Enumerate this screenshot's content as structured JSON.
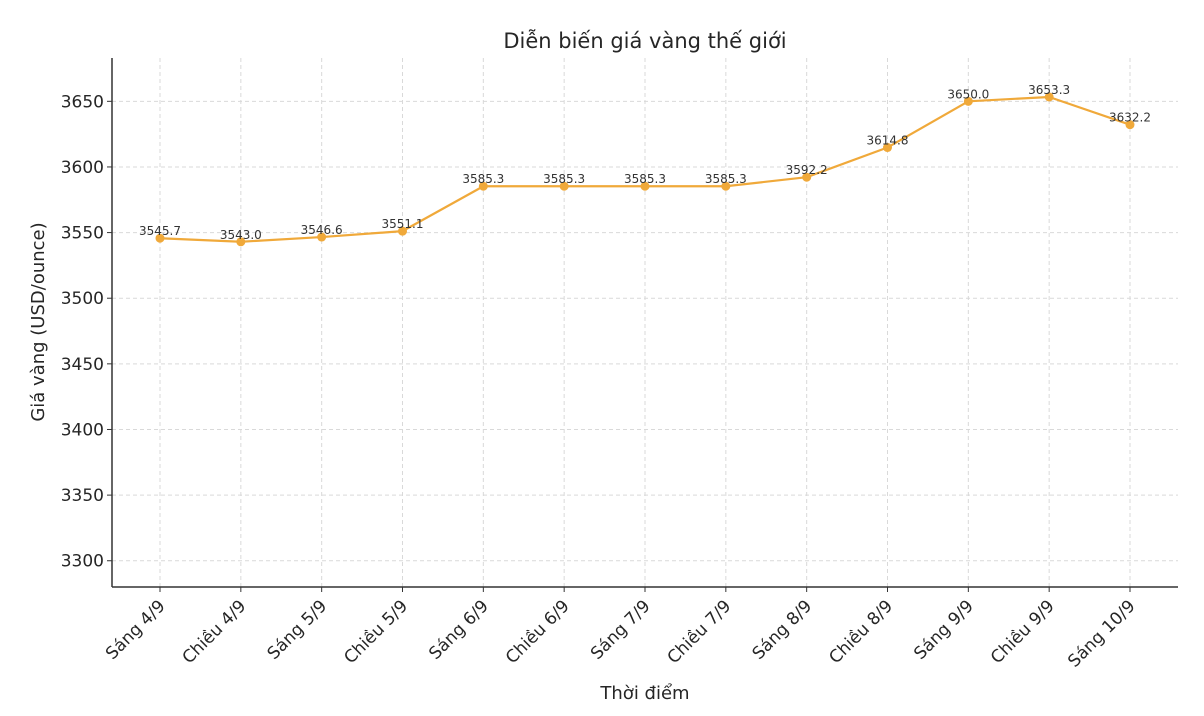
{
  "chart_data": {
    "type": "line",
    "title": "Diễn biến giá vàng thế giới",
    "xlabel": "Thời điểm",
    "ylabel": "Giá vàng (USD/ounce)",
    "categories": [
      "Sáng 4/9",
      "Chiều 4/9",
      "Sáng 5/9",
      "Chiều 5/9",
      "Sáng 6/9",
      "Chiều 6/9",
      "Sáng 7/9",
      "Chiều 7/9",
      "Sáng 8/9",
      "Chiều 8/9",
      "Sáng 9/9",
      "Chiều 9/9",
      "Sáng 10/9"
    ],
    "series": [
      {
        "values": [
          3545.7,
          3543.0,
          3546.6,
          3551.1,
          3585.3,
          3585.3,
          3585.3,
          3585.3,
          3592.2,
          3614.8,
          3650.0,
          3653.3,
          3632.2
        ],
        "labels": [
          "3545.7",
          "3543.0",
          "3546.6",
          "3551.1",
          "3585.3",
          "3585.3",
          "3585.3",
          "3585.3",
          "3592.2",
          "3614.8",
          "3650.0",
          "3653.3",
          "3632.2"
        ],
        "color": "#F0A93A"
      }
    ],
    "yticks": [
      "3300",
      "3350",
      "3400",
      "3450",
      "3500",
      "3550",
      "3600",
      "3650"
    ],
    "ylim": [
      3280,
      3683
    ],
    "grid": true,
    "legend": "none"
  }
}
